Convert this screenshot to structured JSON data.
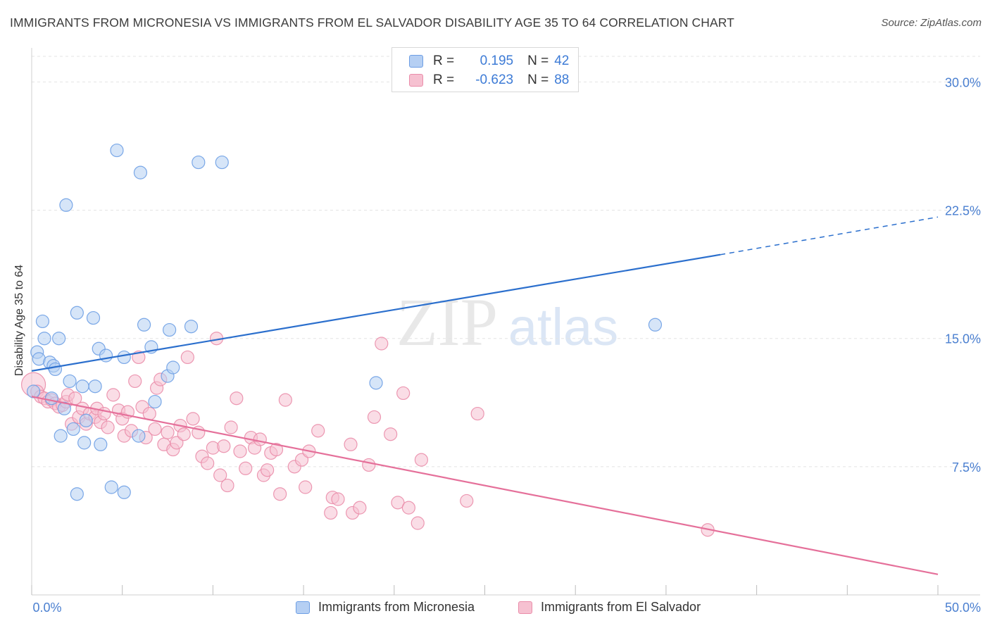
{
  "title": "IMMIGRANTS FROM MICRONESIA VS IMMIGRANTS FROM EL SALVADOR DISABILITY AGE 35 TO 64 CORRELATION CHART",
  "source": "Source: ZipAtlas.com",
  "watermark": {
    "zip": "ZIP",
    "atlas": "atlas"
  },
  "legend_top": {
    "rows": [
      {
        "r_label": "R =",
        "r_value": "0.195",
        "n_label": "N =",
        "n_value": "42"
      },
      {
        "r_label": "R =",
        "r_value": "-0.623",
        "n_label": "N =",
        "n_value": "88"
      }
    ]
  },
  "colors": {
    "blue_fill": "#b5cff3",
    "blue_stroke": "#6d9ee4",
    "blue_line": "#2b6fcd",
    "pink_fill": "#f6c1d1",
    "pink_stroke": "#ea8daa",
    "pink_line": "#e5709a",
    "tick_label": "#4a7fd0",
    "grid": "#e3e3e3",
    "watermark": "#e8e8e8"
  },
  "chart_data": {
    "type": "scatter",
    "title": "IMMIGRANTS FROM MICRONESIA VS IMMIGRANTS FROM EL SALVADOR DISABILITY AGE 35 TO 64 CORRELATION CHART",
    "xlabel": "",
    "ylabel": "Disability Age 35 to 64",
    "xlim": [
      0,
      50
    ],
    "ylim": [
      0,
      31.5
    ],
    "x_tick_labels": [
      "0.0%",
      "50.0%"
    ],
    "y_ticks": [
      7.5,
      15.0,
      22.5,
      30.0
    ],
    "y_tick_labels": [
      "7.5%",
      "15.0%",
      "22.5%",
      "30.0%"
    ],
    "grid": true,
    "legend_position": "bottom",
    "series": [
      {
        "name": "Immigrants from Micronesia",
        "R": 0.195,
        "N": 42,
        "trend": {
          "x0": 0,
          "y0": 13.1,
          "x1": 38,
          "y1": 19.9,
          "dashed_to_x": 50,
          "dashed_to_y": 22.1
        },
        "points": [
          [
            0.1,
            11.9
          ],
          [
            0.3,
            14.2
          ],
          [
            0.4,
            13.8
          ],
          [
            0.6,
            16.0
          ],
          [
            0.7,
            15.0
          ],
          [
            1.0,
            13.6
          ],
          [
            1.1,
            11.5
          ],
          [
            1.2,
            13.4
          ],
          [
            1.3,
            13.2
          ],
          [
            1.5,
            15.0
          ],
          [
            1.6,
            9.3
          ],
          [
            1.8,
            10.9
          ],
          [
            1.9,
            22.8
          ],
          [
            2.1,
            12.5
          ],
          [
            2.3,
            9.7
          ],
          [
            2.5,
            16.5
          ],
          [
            2.5,
            5.9
          ],
          [
            2.8,
            12.2
          ],
          [
            2.9,
            8.9
          ],
          [
            3.0,
            10.2
          ],
          [
            3.4,
            16.2
          ],
          [
            3.5,
            12.2
          ],
          [
            3.7,
            14.4
          ],
          [
            3.8,
            8.8
          ],
          [
            4.1,
            14.0
          ],
          [
            4.4,
            6.3
          ],
          [
            4.7,
            26.0
          ],
          [
            5.1,
            13.9
          ],
          [
            5.1,
            6.0
          ],
          [
            5.9,
            9.3
          ],
          [
            6.0,
            24.7
          ],
          [
            6.2,
            15.8
          ],
          [
            6.6,
            14.5
          ],
          [
            6.8,
            11.3
          ],
          [
            7.5,
            12.8
          ],
          [
            7.6,
            15.5
          ],
          [
            7.8,
            13.3
          ],
          [
            8.8,
            15.7
          ],
          [
            9.2,
            25.3
          ],
          [
            10.5,
            25.3
          ],
          [
            19.0,
            12.4
          ],
          [
            34.4,
            15.8
          ]
        ]
      },
      {
        "name": "Immigrants from El Salvador",
        "R": -0.623,
        "N": 88,
        "trend": {
          "x0": 0,
          "y0": 11.6,
          "x1": 50,
          "y1": 1.2
        },
        "points": [
          [
            0.1,
            12.3
          ],
          [
            0.3,
            11.9
          ],
          [
            0.5,
            11.6
          ],
          [
            0.7,
            11.5
          ],
          [
            0.9,
            11.3
          ],
          [
            1.1,
            11.4
          ],
          [
            1.3,
            11.2
          ],
          [
            1.5,
            11.0
          ],
          [
            1.7,
            11.1
          ],
          [
            1.9,
            11.3
          ],
          [
            2.0,
            11.7
          ],
          [
            2.2,
            10.0
          ],
          [
            2.4,
            11.5
          ],
          [
            2.6,
            10.4
          ],
          [
            2.8,
            10.9
          ],
          [
            3.0,
            10.0
          ],
          [
            3.2,
            10.6
          ],
          [
            3.5,
            10.4
          ],
          [
            3.6,
            10.9
          ],
          [
            3.8,
            10.1
          ],
          [
            4.0,
            10.6
          ],
          [
            4.2,
            9.8
          ],
          [
            4.5,
            11.7
          ],
          [
            4.8,
            10.8
          ],
          [
            5.0,
            10.3
          ],
          [
            5.1,
            9.3
          ],
          [
            5.3,
            10.7
          ],
          [
            5.5,
            9.6
          ],
          [
            5.7,
            12.5
          ],
          [
            5.9,
            13.9
          ],
          [
            6.1,
            11.0
          ],
          [
            6.3,
            9.2
          ],
          [
            6.5,
            10.6
          ],
          [
            6.8,
            9.7
          ],
          [
            6.9,
            12.1
          ],
          [
            7.1,
            12.6
          ],
          [
            7.3,
            8.8
          ],
          [
            7.5,
            9.5
          ],
          [
            7.8,
            8.5
          ],
          [
            8.0,
            8.9
          ],
          [
            8.2,
            9.9
          ],
          [
            8.4,
            9.4
          ],
          [
            8.6,
            13.9
          ],
          [
            8.9,
            10.3
          ],
          [
            9.2,
            9.5
          ],
          [
            9.4,
            8.1
          ],
          [
            9.7,
            7.7
          ],
          [
            10.0,
            8.6
          ],
          [
            10.2,
            15.0
          ],
          [
            10.4,
            7.0
          ],
          [
            10.6,
            8.7
          ],
          [
            10.8,
            6.4
          ],
          [
            11.0,
            9.8
          ],
          [
            11.3,
            11.5
          ],
          [
            11.5,
            8.4
          ],
          [
            11.8,
            7.4
          ],
          [
            12.1,
            9.2
          ],
          [
            12.3,
            8.6
          ],
          [
            12.6,
            9.1
          ],
          [
            12.8,
            7.0
          ],
          [
            13.0,
            7.3
          ],
          [
            13.2,
            8.3
          ],
          [
            13.5,
            8.5
          ],
          [
            13.7,
            5.9
          ],
          [
            14.0,
            11.4
          ],
          [
            14.5,
            7.5
          ],
          [
            14.9,
            7.9
          ],
          [
            15.1,
            6.3
          ],
          [
            15.3,
            8.4
          ],
          [
            15.8,
            9.6
          ],
          [
            16.5,
            4.8
          ],
          [
            16.6,
            5.7
          ],
          [
            16.9,
            5.6
          ],
          [
            17.6,
            8.8
          ],
          [
            17.7,
            4.8
          ],
          [
            18.1,
            5.1
          ],
          [
            18.6,
            7.6
          ],
          [
            18.9,
            10.4
          ],
          [
            19.3,
            14.7
          ],
          [
            19.8,
            9.4
          ],
          [
            20.2,
            5.4
          ],
          [
            20.5,
            11.8
          ],
          [
            20.8,
            5.1
          ],
          [
            21.3,
            4.2
          ],
          [
            21.5,
            7.9
          ],
          [
            24.0,
            5.5
          ],
          [
            24.6,
            10.6
          ],
          [
            37.3,
            3.8
          ]
        ]
      }
    ]
  },
  "bottom_legend": [
    {
      "label": "Immigrants from Micronesia"
    },
    {
      "label": "Immigrants from El Salvador"
    }
  ]
}
